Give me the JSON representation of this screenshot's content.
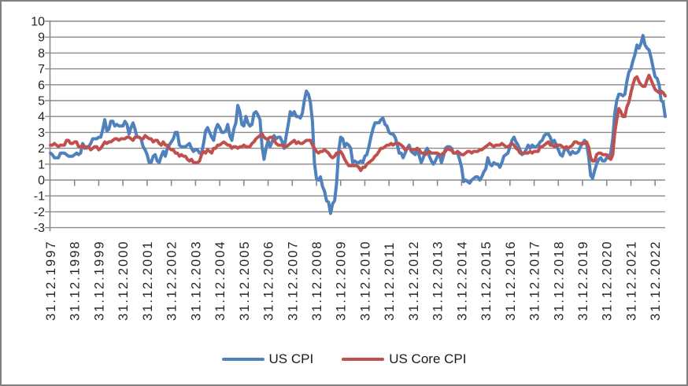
{
  "style": {
    "background": "#ffffff",
    "border_color": "#7f7f7f",
    "grid_color": "#8a8a8a",
    "axis_color": "#8a8a8a",
    "text_color": "#262626"
  },
  "chart_data": {
    "type": "line",
    "title": "",
    "grid": true,
    "legend_position": "bottom-center",
    "x_axis": {
      "frequency": "monthly",
      "start": "31.12.1997",
      "end": "31.05.2023",
      "tick_labels": [
        "31.12.1997",
        "31.12.1998",
        "31.12.1999",
        "31.12.2000",
        "31.12.2001",
        "31.12.2002",
        "31.12.2003",
        "31.12.2004",
        "31.12.2005",
        "31.12.2006",
        "31.12.2007",
        "31.12.2008",
        "31.12.2009",
        "31.12.2010",
        "31.12.2011",
        "31.12.2012",
        "31.12.2013",
        "31.12.2014",
        "31.12.2015",
        "31.12.2016",
        "31.12.2017",
        "31.12.2018",
        "31.12.2019",
        "31.12.2020",
        "31.12.2021",
        "31.12.2022"
      ]
    },
    "y_axis": {
      "min": -3,
      "max": 10,
      "tick_interval": 1,
      "tick_labels": [
        "10",
        "9",
        "8",
        "7",
        "6",
        "5",
        "4",
        "3",
        "2",
        "1",
        "0",
        "-1",
        "-2",
        "-3"
      ]
    },
    "series": [
      {
        "name": "US CPI",
        "color": "#4F81BD",
        "values": [
          1.7,
          1.6,
          1.4,
          1.4,
          1.4,
          1.7,
          1.7,
          1.7,
          1.6,
          1.5,
          1.5,
          1.5,
          1.6,
          1.7,
          1.6,
          1.7,
          2.3,
          2.1,
          2.0,
          2.1,
          2.3,
          2.6,
          2.6,
          2.6,
          2.7,
          2.7,
          3.2,
          3.8,
          3.1,
          3.2,
          3.7,
          3.7,
          3.4,
          3.5,
          3.4,
          3.4,
          3.4,
          3.7,
          3.5,
          2.9,
          3.3,
          3.6,
          3.2,
          2.7,
          2.7,
          2.6,
          2.1,
          1.9,
          1.6,
          1.1,
          1.1,
          1.5,
          1.6,
          1.2,
          1.1,
          1.5,
          1.8,
          1.5,
          2.0,
          2.2,
          2.4,
          2.6,
          3.0,
          3.0,
          2.2,
          2.1,
          2.1,
          2.1,
          2.2,
          2.3,
          2.0,
          1.8,
          1.9,
          1.9,
          1.7,
          1.7,
          2.3,
          3.1,
          3.3,
          3.0,
          2.7,
          2.5,
          3.2,
          3.5,
          3.3,
          3.0,
          3.0,
          3.1,
          3.5,
          2.8,
          2.5,
          3.2,
          3.6,
          4.7,
          4.3,
          3.5,
          3.4,
          4.0,
          3.6,
          3.4,
          3.5,
          4.2,
          4.3,
          4.1,
          3.8,
          2.1,
          1.3,
          2.0,
          2.5,
          2.1,
          2.4,
          2.8,
          2.6,
          2.7,
          2.7,
          2.4,
          2.0,
          2.8,
          3.5,
          4.3,
          4.1,
          4.3,
          4.0,
          4.0,
          3.9,
          4.2,
          5.0,
          5.6,
          5.4,
          4.9,
          3.7,
          1.1,
          0.1,
          0.0,
          0.2,
          -0.4,
          -0.7,
          -1.3,
          -1.4,
          -2.1,
          -1.5,
          -1.3,
          -0.2,
          1.8,
          2.7,
          2.6,
          2.1,
          2.3,
          2.2,
          2.0,
          1.1,
          1.2,
          1.1,
          1.1,
          1.2,
          1.1,
          1.5,
          1.6,
          2.1,
          2.7,
          3.2,
          3.6,
          3.6,
          3.6,
          3.8,
          3.9,
          3.5,
          3.4,
          3.0,
          2.9,
          2.9,
          2.7,
          2.3,
          1.7,
          1.7,
          1.4,
          1.7,
          2.0,
          2.2,
          1.8,
          1.7,
          1.6,
          2.0,
          1.5,
          1.1,
          1.4,
          1.8,
          2.0,
          1.5,
          1.2,
          1.0,
          1.2,
          1.5,
          1.6,
          1.1,
          1.5,
          2.0,
          2.1,
          2.1,
          2.0,
          1.7,
          1.7,
          1.7,
          1.3,
          0.8,
          -0.1,
          0.0,
          -0.1,
          -0.2,
          0.0,
          0.1,
          0.2,
          0.2,
          0.0,
          0.2,
          0.5,
          0.7,
          1.4,
          1.0,
          0.9,
          1.1,
          1.0,
          1.0,
          0.8,
          1.1,
          1.5,
          1.6,
          1.7,
          2.1,
          2.5,
          2.7,
          2.4,
          2.2,
          1.9,
          1.6,
          1.7,
          1.9,
          2.2,
          2.0,
          2.2,
          2.1,
          2.1,
          2.2,
          2.4,
          2.5,
          2.8,
          2.9,
          2.9,
          2.7,
          2.3,
          2.5,
          2.2,
          1.9,
          1.6,
          1.5,
          1.9,
          2.0,
          1.8,
          1.6,
          1.8,
          1.7,
          1.7,
          1.8,
          2.1,
          2.3,
          2.5,
          2.3,
          1.5,
          0.3,
          0.1,
          0.6,
          1.0,
          1.3,
          1.4,
          1.2,
          1.2,
          1.4,
          1.4,
          1.7,
          2.6,
          4.2,
          5.0,
          5.4,
          5.4,
          5.3,
          5.4,
          6.2,
          6.8,
          7.0,
          7.5,
          7.9,
          8.5,
          8.3,
          8.6,
          9.1,
          8.5,
          8.3,
          8.2,
          7.7,
          7.1,
          6.5,
          6.4,
          6.0,
          5.0,
          4.9,
          4.0
        ]
      },
      {
        "name": "US Core CPI",
        "color": "#C0504D",
        "values": [
          2.2,
          2.2,
          2.3,
          2.2,
          2.1,
          2.2,
          2.2,
          2.2,
          2.5,
          2.5,
          2.3,
          2.3,
          2.4,
          2.4,
          2.1,
          2.1,
          2.2,
          2.0,
          2.1,
          2.1,
          1.9,
          2.0,
          2.1,
          2.1,
          1.9,
          2.0,
          2.2,
          2.4,
          2.3,
          2.4,
          2.4,
          2.5,
          2.6,
          2.6,
          2.5,
          2.6,
          2.6,
          2.6,
          2.7,
          2.7,
          2.6,
          2.5,
          2.7,
          2.7,
          2.7,
          2.6,
          2.6,
          2.8,
          2.7,
          2.6,
          2.6,
          2.4,
          2.5,
          2.5,
          2.3,
          2.2,
          2.4,
          2.2,
          2.2,
          2.0,
          1.9,
          1.9,
          1.7,
          1.7,
          1.5,
          1.6,
          1.5,
          1.5,
          1.3,
          1.2,
          1.3,
          1.1,
          1.1,
          1.1,
          1.2,
          1.6,
          1.8,
          1.7,
          1.9,
          1.8,
          1.7,
          2.0,
          2.0,
          2.2,
          2.2,
          2.3,
          2.4,
          2.3,
          2.2,
          2.2,
          2.0,
          2.1,
          2.1,
          2.0,
          2.1,
          2.1,
          2.2,
          2.1,
          2.1,
          2.1,
          2.3,
          2.4,
          2.6,
          2.7,
          2.8,
          2.9,
          2.7,
          2.6,
          2.6,
          2.7,
          2.7,
          2.5,
          2.3,
          2.2,
          2.2,
          2.2,
          2.1,
          2.1,
          2.2,
          2.3,
          2.4,
          2.5,
          2.3,
          2.4,
          2.3,
          2.3,
          2.4,
          2.5,
          2.5,
          2.5,
          2.2,
          2.0,
          1.8,
          1.7,
          1.8,
          1.8,
          1.9,
          1.8,
          1.7,
          1.5,
          1.4,
          1.5,
          1.7,
          1.7,
          1.8,
          1.6,
          1.3,
          1.1,
          0.9,
          0.9,
          0.9,
          0.9,
          0.9,
          0.8,
          0.6,
          0.8,
          0.8,
          1.0,
          1.1,
          1.2,
          1.3,
          1.5,
          1.6,
          1.8,
          2.0,
          2.0,
          2.1,
          2.2,
          2.2,
          2.3,
          2.2,
          2.3,
          2.3,
          2.3,
          2.2,
          2.1,
          1.9,
          2.0,
          2.0,
          1.9,
          1.9,
          1.9,
          2.0,
          1.9,
          1.7,
          1.7,
          1.6,
          1.7,
          1.8,
          1.7,
          1.7,
          1.7,
          1.7,
          1.6,
          1.6,
          1.7,
          1.8,
          2.0,
          1.9,
          1.9,
          1.7,
          1.7,
          1.8,
          1.7,
          1.6,
          1.6,
          1.7,
          1.8,
          1.8,
          1.7,
          1.8,
          1.8,
          1.8,
          1.9,
          1.9,
          2.0,
          2.1,
          2.2,
          2.3,
          2.2,
          2.1,
          2.2,
          2.2,
          2.2,
          2.3,
          2.2,
          2.1,
          2.1,
          2.2,
          2.3,
          2.2,
          2.0,
          1.9,
          1.7,
          1.7,
          1.7,
          1.7,
          1.7,
          1.8,
          1.7,
          1.8,
          1.8,
          1.8,
          2.1,
          2.1,
          2.2,
          2.3,
          2.4,
          2.2,
          2.2,
          2.1,
          2.2,
          2.2,
          2.2,
          2.1,
          2.0,
          2.1,
          2.0,
          2.1,
          2.2,
          2.4,
          2.4,
          2.3,
          2.3,
          2.3,
          2.3,
          2.4,
          2.1,
          1.4,
          1.2,
          1.2,
          1.6,
          1.7,
          1.7,
          1.6,
          1.6,
          1.6,
          1.4,
          1.3,
          1.6,
          3.0,
          3.8,
          4.5,
          4.3,
          4.0,
          4.0,
          4.6,
          4.9,
          5.5,
          6.0,
          6.4,
          6.5,
          6.2,
          6.0,
          5.9,
          5.9,
          6.3,
          6.6,
          6.3,
          6.0,
          5.7,
          5.6,
          5.5,
          5.6,
          5.5,
          5.3
        ]
      }
    ]
  }
}
